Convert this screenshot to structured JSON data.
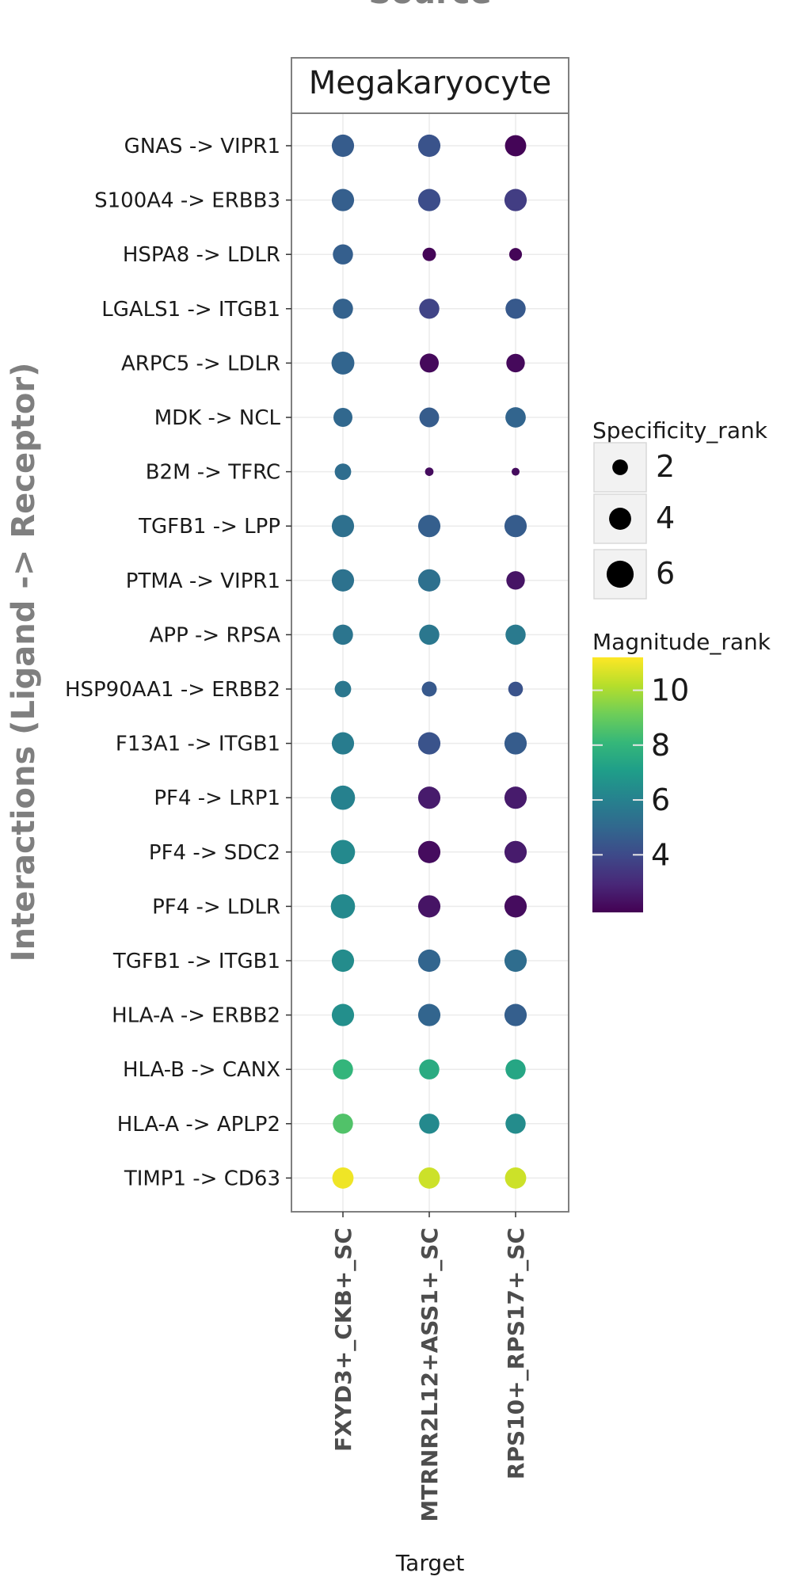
{
  "chart_data": {
    "type": "scatter",
    "title": "Source",
    "facet": "Megakaryocyte",
    "xlabel": "Target",
    "ylabel": "Interactions (Ligand -> Receptor)",
    "targets": [
      "FXYD3+_CKB+_SC",
      "MTRNR2L12+ASS1+_SC",
      "RPS10+_RPS17+_SC"
    ],
    "interactions": [
      "GNAS -> VIPR1",
      "S100A4 -> ERBB3",
      "HSPA8 -> LDLR",
      "LGALS1 -> ITGB1",
      "ARPC5 -> LDLR",
      "MDK -> NCL",
      "B2M -> TFRC",
      "TGFB1 -> LPP",
      "PTMA -> VIPR1",
      "APP -> RPSA",
      "HSP90AA1 -> ERBB2",
      "F13A1 -> ITGB1",
      "PF4 -> LRP1",
      "PF4 -> SDC2",
      "PF4 -> LDLR",
      "TGFB1 -> ITGB1",
      "HLA-A -> ERBB2",
      "HLA-B -> CANX",
      "HLA-A -> APLP2",
      "TIMP1 -> CD63"
    ],
    "specificity_rank": [
      [
        5.5,
        5.5,
        5.0
      ],
      [
        5.5,
        5.5,
        5.5
      ],
      [
        4.5,
        2.0,
        1.8
      ],
      [
        4.5,
        4.5,
        4.5
      ],
      [
        5.8,
        4.0,
        3.8
      ],
      [
        4.0,
        4.3,
        4.6
      ],
      [
        3.0,
        0.8,
        0.7
      ],
      [
        5.5,
        5.5,
        5.5
      ],
      [
        5.5,
        5.5,
        3.8
      ],
      [
        4.5,
        4.5,
        4.5
      ],
      [
        3.0,
        2.5,
        2.4
      ],
      [
        5.5,
        5.5,
        5.5
      ],
      [
        6.5,
        5.5,
        5.5
      ],
      [
        6.5,
        5.5,
        5.5
      ],
      [
        6.5,
        5.5,
        5.5
      ],
      [
        5.5,
        5.5,
        5.5
      ],
      [
        5.5,
        5.5,
        5.5
      ],
      [
        4.5,
        4.5,
        4.5
      ],
      [
        4.5,
        4.5,
        4.5
      ],
      [
        5.0,
        5.0,
        5.0
      ]
    ],
    "magnitude_rank": [
      [
        4.6,
        4.3,
        2.0
      ],
      [
        4.7,
        4.1,
        3.6
      ],
      [
        4.7,
        2.0,
        2.0
      ],
      [
        4.8,
        3.8,
        4.5
      ],
      [
        4.9,
        2.1,
        2.1
      ],
      [
        5.0,
        4.6,
        4.9
      ],
      [
        5.2,
        2.2,
        2.2
      ],
      [
        5.3,
        4.7,
        4.6
      ],
      [
        5.4,
        5.3,
        2.4
      ],
      [
        5.5,
        5.6,
        5.7
      ],
      [
        5.6,
        4.5,
        4.3
      ],
      [
        5.8,
        4.3,
        4.6
      ],
      [
        6.0,
        2.6,
        2.6
      ],
      [
        6.3,
        2.2,
        2.6
      ],
      [
        6.3,
        2.4,
        2.2
      ],
      [
        6.4,
        4.9,
        5.2
      ],
      [
        6.5,
        4.9,
        4.7
      ],
      [
        8.0,
        7.6,
        7.4
      ],
      [
        8.6,
        6.3,
        6.4
      ],
      [
        11.0,
        10.5,
        10.5
      ]
    ],
    "legend": {
      "size_title": "Specificity_rank",
      "size_values": [
        2,
        4,
        6
      ],
      "size_labels": [
        "2",
        "4",
        "6"
      ],
      "color_title": "Magnitude_rank",
      "color_range": [
        1.9,
        11.2
      ],
      "color_ticks": [
        4,
        6,
        8,
        10
      ],
      "color_labels": [
        "4",
        "6",
        "8",
        "10"
      ],
      "colormap": [
        "#440154",
        "#482878",
        "#3e4989",
        "#31688e",
        "#26828e",
        "#1f9e89",
        "#35b779",
        "#6ece58",
        "#b5de2b",
        "#fde725"
      ],
      "placement": "right"
    },
    "grid": true,
    "colors": {
      "panel_border": "#7f7f7f",
      "grid": "#ebebeb",
      "axis_title": "#7f7f7f",
      "label": "#1a1a1a"
    }
  }
}
